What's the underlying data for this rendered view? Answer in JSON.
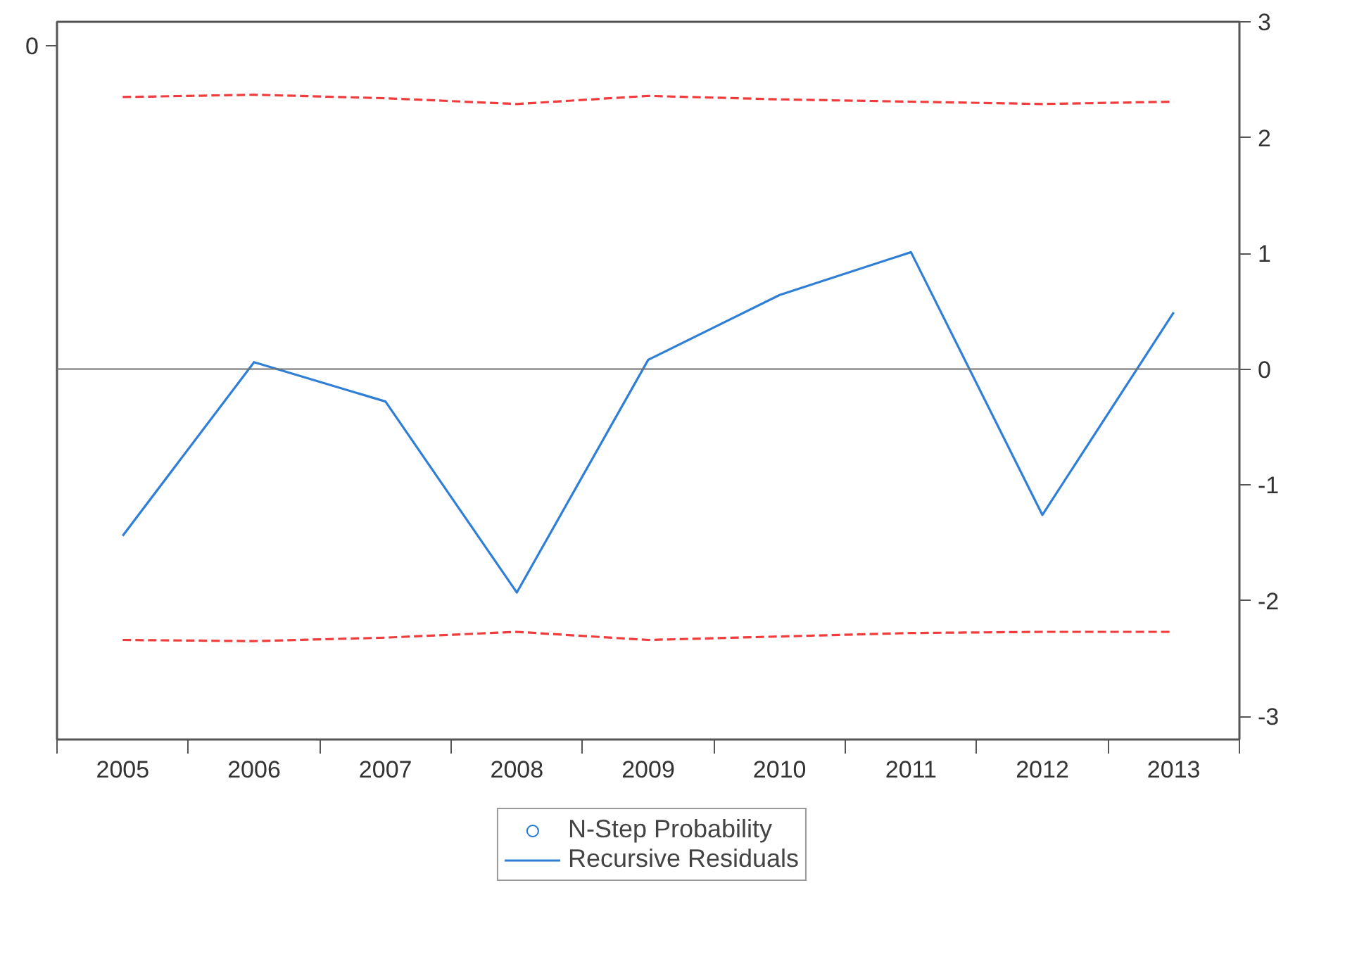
{
  "chart_data": {
    "type": "line",
    "categories": [
      "2005",
      "2006",
      "2007",
      "2008",
      "2009",
      "2010",
      "2011",
      "2012",
      "2013"
    ],
    "series": [
      {
        "name": "N-Step Probability",
        "type": "scatter",
        "marker": "circle",
        "color": "#1f77d4",
        "values": [
          null,
          null,
          null,
          null,
          null,
          null,
          null,
          null,
          null
        ]
      },
      {
        "name": "Recursive Residuals",
        "color": "#2f7fd6",
        "values": [
          -1.44,
          0.06,
          -0.28,
          -1.93,
          0.08,
          0.64,
          1.01,
          -1.26,
          0.49
        ]
      },
      {
        "color": "#f03c3c",
        "line_style": "dashed",
        "values": [
          2.35,
          2.37,
          2.34,
          2.29,
          2.36,
          2.33,
          2.31,
          2.29,
          2.31
        ]
      },
      {
        "color": "#f03c3c",
        "line_style": "dashed",
        "values": [
          -2.34,
          -2.35,
          -2.32,
          -2.27,
          -2.34,
          -2.31,
          -2.28,
          -2.27,
          -2.27
        ]
      }
    ],
    "ylim": [
      -3.2,
      3
    ],
    "yticks": [
      -3,
      -2,
      -1,
      0,
      1,
      2,
      3
    ],
    "annotations": [
      "0"
    ],
    "ref_lines": [
      {
        "axis": "y",
        "value": 0,
        "color": "#707070"
      }
    ],
    "legend": "bottom"
  }
}
